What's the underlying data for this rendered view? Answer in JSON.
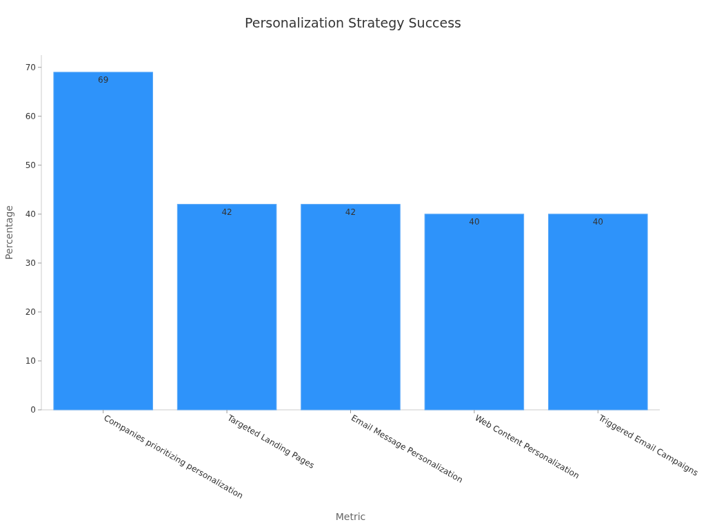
{
  "chart_data": {
    "type": "bar",
    "title": "Personalization Strategy Success",
    "xlabel": "Metric",
    "ylabel": "Percentage",
    "categories": [
      "Companies prioritizing personalization",
      "Targeted Landing Pages",
      "Email Message Personalization",
      "Web Content Personalization",
      "Triggered Email Campaigns"
    ],
    "values": [
      69,
      42,
      42,
      40,
      40
    ],
    "color": "#2e93fa",
    "ylim": [
      0,
      72.5
    ],
    "yticks": [
      0,
      10,
      20,
      30,
      40,
      50,
      60,
      70
    ],
    "data_labels": true,
    "grid": false
  }
}
